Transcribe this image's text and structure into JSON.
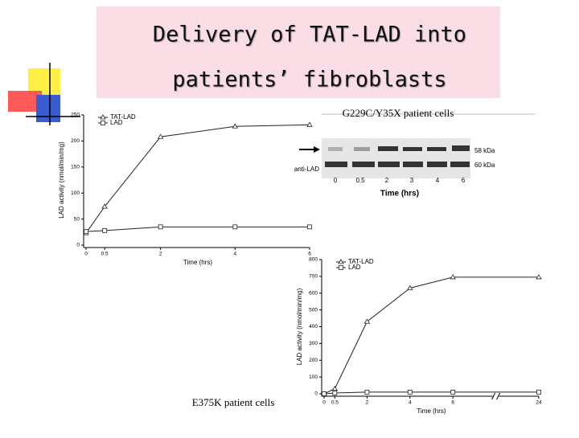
{
  "title": [
    "Delivery of TAT-LAD into",
    "patients’ fibroblasts"
  ],
  "chart_data": [
    {
      "type": "line",
      "caption": "E375K patient cells",
      "x_label": "Time (hrs)",
      "y_label": "LAD activity (nmol/min/mg)",
      "x": [
        0,
        0.5,
        2,
        4,
        6
      ],
      "xlim": [
        0,
        6
      ],
      "xticks": [
        0,
        0.5,
        2,
        4,
        6
      ],
      "ylim": [
        0,
        250
      ],
      "yticks": [
        0,
        50,
        100,
        150,
        200,
        250
      ],
      "legend": "upper left",
      "axis_break": false,
      "series": [
        {
          "name": "TAT-LAD",
          "color": "#222222",
          "marker": "triangle",
          "values": [
            23,
            74,
            208,
            228,
            231
          ]
        },
        {
          "name": "LAD",
          "color": "#222222",
          "marker": "square",
          "values": [
            26,
            28,
            35,
            35,
            35
          ]
        }
      ]
    },
    {
      "type": "line",
      "x_label": "Time (hrs)",
      "y_label": "LAD activity (nmol/min/mg)",
      "x": [
        0,
        0.5,
        2,
        4,
        6,
        24
      ],
      "xlim": [
        0,
        24
      ],
      "xticks": [
        0,
        0.5,
        2,
        4,
        6,
        24
      ],
      "ylim": [
        0,
        800
      ],
      "yticks": [
        0,
        100,
        200,
        300,
        400,
        500,
        600,
        700,
        800
      ],
      "legend": "upper left",
      "axis_break": true,
      "series": [
        {
          "name": "TAT-LAD",
          "color": "#222222",
          "marker": "triangle",
          "values": [
            0,
            30,
            430,
            630,
            695,
            695
          ]
        },
        {
          "name": "LAD",
          "color": "#222222",
          "marker": "square",
          "values": [
            0,
            5,
            10,
            10,
            10,
            10
          ]
        }
      ]
    }
  ],
  "blot": {
    "caption": "G229C/Y35X patient cells",
    "antibody": "anti-LAD",
    "bands": [
      "58 kDa",
      "60 kDa"
    ],
    "lanes": [
      "0",
      "0.5",
      "2",
      "3",
      "4",
      "6"
    ],
    "x_label": "Time (hrs)"
  }
}
